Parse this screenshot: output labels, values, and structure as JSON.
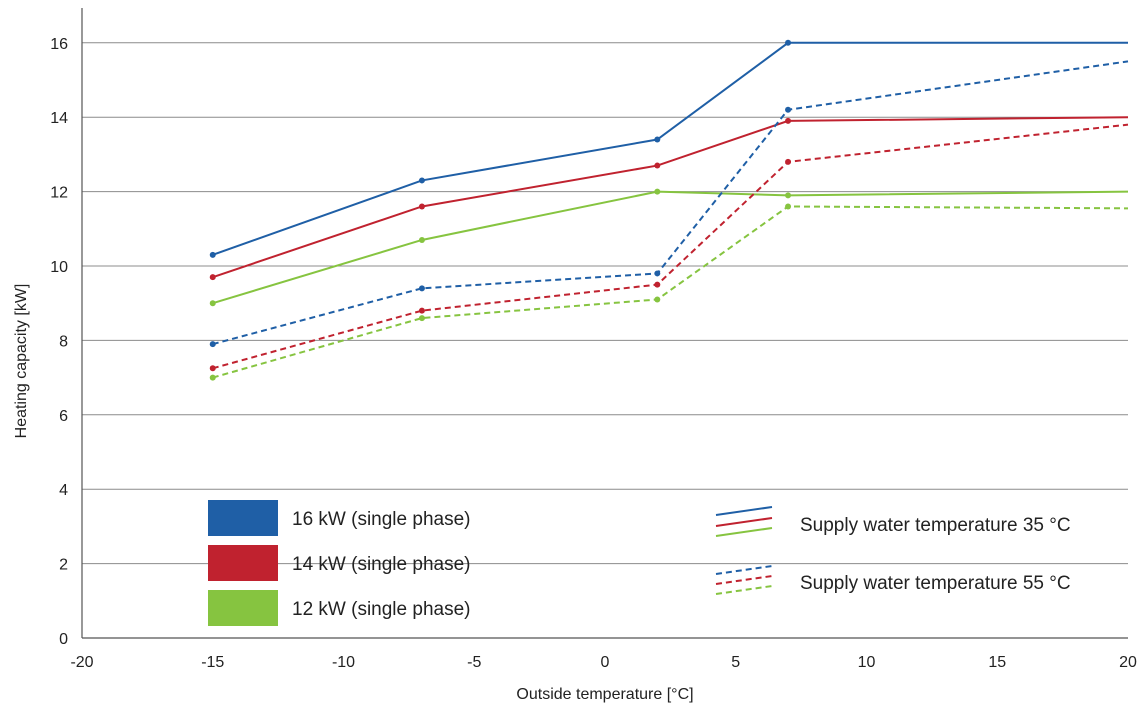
{
  "chart_data": {
    "type": "line",
    "xlabel": "Outside temperature [°C]",
    "ylabel": "Heating capacity [kW]",
    "xlim": [
      -20,
      20
    ],
    "ylim": [
      0,
      17
    ],
    "x_ticks": [
      -20,
      -15,
      -10,
      -5,
      0,
      5,
      10,
      15,
      20
    ],
    "y_ticks": [
      0,
      2,
      4,
      6,
      8,
      10,
      12,
      14,
      16
    ],
    "grid": "horizontal",
    "series": [
      {
        "name": "16 kW (single phase)",
        "supply": "35 °C",
        "color": "#1f5fa6",
        "dash": false,
        "points": [
          [
            -15,
            10.3
          ],
          [
            -7,
            12.3
          ],
          [
            2,
            13.4
          ],
          [
            7,
            16.0
          ],
          [
            20,
            16.0
          ]
        ]
      },
      {
        "name": "14 kW (single phase)",
        "supply": "35 °C",
        "color": "#c0222f",
        "dash": false,
        "points": [
          [
            -15,
            9.7
          ],
          [
            -7,
            11.6
          ],
          [
            2,
            12.7
          ],
          [
            7,
            13.9
          ],
          [
            20,
            14.0
          ]
        ]
      },
      {
        "name": "12 kW (single phase)",
        "supply": "35 °C",
        "color": "#86c440",
        "dash": false,
        "points": [
          [
            -15,
            9.0
          ],
          [
            -7,
            10.7
          ],
          [
            2,
            12.0
          ],
          [
            7,
            11.9
          ],
          [
            20,
            12.0
          ]
        ]
      },
      {
        "name": "16 kW (single phase)",
        "supply": "55 °C",
        "color": "#1f5fa6",
        "dash": true,
        "points": [
          [
            -15,
            7.9
          ],
          [
            -7,
            9.4
          ],
          [
            2,
            9.8
          ],
          [
            7,
            14.2
          ],
          [
            20,
            15.5
          ]
        ]
      },
      {
        "name": "14 kW (single phase)",
        "supply": "55 °C",
        "color": "#c0222f",
        "dash": true,
        "points": [
          [
            -15,
            7.25
          ],
          [
            -7,
            8.8
          ],
          [
            2,
            9.5
          ],
          [
            7,
            12.8
          ],
          [
            20,
            13.8
          ]
        ]
      },
      {
        "name": "12 kW (single phase)",
        "supply": "55 °C",
        "color": "#86c440",
        "dash": true,
        "points": [
          [
            -15,
            7.0
          ],
          [
            -7,
            8.6
          ],
          [
            2,
            9.1
          ],
          [
            7,
            11.6
          ],
          [
            20,
            11.55
          ]
        ]
      }
    ],
    "legend_capacity": [
      {
        "label": "16 kW (single phase)",
        "color": "#1f5fa6"
      },
      {
        "label": "14 kW (single phase)",
        "color": "#c0222f"
      },
      {
        "label": "12 kW (single phase)",
        "color": "#86c440"
      }
    ],
    "legend_linestyle": [
      {
        "label": "Supply water temperature 35 °C",
        "dash": false
      },
      {
        "label": "Supply water temperature 55 °C",
        "dash": true
      }
    ],
    "legend_placement": "bottom-inside"
  }
}
